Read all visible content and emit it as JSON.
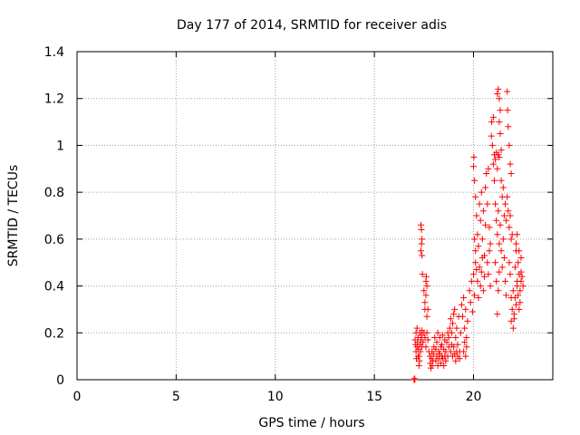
{
  "chart_data": {
    "type": "scatter",
    "title": "Day 177 of 2014, SRMTID for receiver adis",
    "xlabel": "GPS time / hours",
    "ylabel": "SRMTID / TECUs",
    "xlim": [
      0,
      24
    ],
    "ylim": [
      0,
      1.4
    ],
    "xticks": [
      0,
      5,
      10,
      15,
      20
    ],
    "xtick_labels": [
      "0",
      "5",
      "10",
      "15",
      "20"
    ],
    "yticks": [
      0,
      0.2,
      0.4,
      0.6,
      0.8,
      1.0,
      1.2,
      1.4
    ],
    "ytick_labels": [
      "0",
      "0.2",
      "0.4",
      "0.6",
      "0.8",
      "1",
      "1.2",
      "1.4"
    ],
    "grid": true,
    "marker": "plus",
    "series_color": "#ff0000",
    "series": [
      {
        "name": "SRMTID",
        "points": [
          [
            17.0,
            0.0
          ],
          [
            17.02,
            0.005
          ],
          [
            17.04,
            0.0
          ],
          [
            17.05,
            0.17
          ],
          [
            17.08,
            0.15
          ],
          [
            17.1,
            0.12
          ],
          [
            17.12,
            0.09
          ],
          [
            17.15,
            0.14
          ],
          [
            17.18,
            0.16
          ],
          [
            17.2,
            0.18
          ],
          [
            17.22,
            0.13
          ],
          [
            17.25,
            0.1
          ],
          [
            17.28,
            0.08
          ],
          [
            17.3,
            0.15
          ],
          [
            17.32,
            0.12
          ],
          [
            17.35,
            0.17
          ],
          [
            17.38,
            0.19
          ],
          [
            17.4,
            0.14
          ],
          [
            17.1,
            0.2
          ],
          [
            17.15,
            0.22
          ],
          [
            17.2,
            0.1
          ],
          [
            17.25,
            0.06
          ],
          [
            17.3,
            0.2
          ],
          [
            17.4,
            0.21
          ],
          [
            17.45,
            0.16
          ],
          [
            17.35,
            0.66
          ],
          [
            17.37,
            0.64
          ],
          [
            17.4,
            0.6
          ],
          [
            17.38,
            0.58
          ],
          [
            17.35,
            0.55
          ],
          [
            17.4,
            0.53
          ],
          [
            17.42,
            0.45
          ],
          [
            17.5,
            0.38
          ],
          [
            17.55,
            0.3
          ],
          [
            17.6,
            0.36
          ],
          [
            17.65,
            0.4
          ],
          [
            17.55,
            0.33
          ],
          [
            17.6,
            0.42
          ],
          [
            17.62,
            0.44
          ],
          [
            17.7,
            0.3
          ],
          [
            17.65,
            0.27
          ],
          [
            17.5,
            0.2
          ],
          [
            17.55,
            0.18
          ],
          [
            17.6,
            0.14
          ],
          [
            17.65,
            0.2
          ],
          [
            17.7,
            0.17
          ],
          [
            17.75,
            0.12
          ],
          [
            17.8,
            0.1
          ],
          [
            17.82,
            0.07
          ],
          [
            17.85,
            0.05
          ],
          [
            17.88,
            0.09
          ],
          [
            17.9,
            0.12
          ],
          [
            17.92,
            0.06
          ],
          [
            17.95,
            0.08
          ],
          [
            17.98,
            0.11
          ],
          [
            18.0,
            0.14
          ],
          [
            18.05,
            0.18
          ],
          [
            18.1,
            0.13
          ],
          [
            18.15,
            0.16
          ],
          [
            18.2,
            0.2
          ],
          [
            18.25,
            0.12
          ],
          [
            18.3,
            0.18
          ],
          [
            18.35,
            0.14
          ],
          [
            18.1,
            0.08
          ],
          [
            18.15,
            0.1
          ],
          [
            18.2,
            0.06
          ],
          [
            18.25,
            0.09
          ],
          [
            18.3,
            0.11
          ],
          [
            18.35,
            0.07
          ],
          [
            18.4,
            0.1
          ],
          [
            18.4,
            0.15
          ],
          [
            18.45,
            0.19
          ],
          [
            18.5,
            0.13
          ],
          [
            18.55,
            0.17
          ],
          [
            18.6,
            0.12
          ],
          [
            18.65,
            0.16
          ],
          [
            18.7,
            0.1
          ],
          [
            18.75,
            0.14
          ],
          [
            18.45,
            0.09
          ],
          [
            18.5,
            0.06
          ],
          [
            18.55,
            0.1
          ],
          [
            18.6,
            0.08
          ],
          [
            18.7,
            0.2
          ],
          [
            18.75,
            0.18
          ],
          [
            18.8,
            0.22
          ],
          [
            18.85,
            0.26
          ],
          [
            18.9,
            0.2
          ],
          [
            18.95,
            0.24
          ],
          [
            19.0,
            0.28
          ],
          [
            18.85,
            0.12
          ],
          [
            18.9,
            0.15
          ],
          [
            18.95,
            0.1
          ],
          [
            19.0,
            0.14
          ],
          [
            19.05,
            0.3
          ],
          [
            19.1,
            0.18
          ],
          [
            19.15,
            0.22
          ],
          [
            19.2,
            0.15
          ],
          [
            19.25,
            0.27
          ],
          [
            19.3,
            0.12
          ],
          [
            19.35,
            0.2
          ],
          [
            19.05,
            0.11
          ],
          [
            19.1,
            0.08
          ],
          [
            19.15,
            0.12
          ],
          [
            19.2,
            0.1
          ],
          [
            19.3,
            0.09
          ],
          [
            19.4,
            0.32
          ],
          [
            19.45,
            0.27
          ],
          [
            19.5,
            0.35
          ],
          [
            19.55,
            0.22
          ],
          [
            19.6,
            0.3
          ],
          [
            19.65,
            0.18
          ],
          [
            19.7,
            0.25
          ],
          [
            19.5,
            0.12
          ],
          [
            19.55,
            0.16
          ],
          [
            19.6,
            0.1
          ],
          [
            19.65,
            0.14
          ],
          [
            19.8,
            0.38
          ],
          [
            19.85,
            0.33
          ],
          [
            19.9,
            0.42
          ],
          [
            19.95,
            0.29
          ],
          [
            20.0,
            0.45
          ],
          [
            20.05,
            0.36
          ],
          [
            20.1,
            0.5
          ],
          [
            20.0,
            0.91
          ],
          [
            20.02,
            0.95
          ],
          [
            20.05,
            0.85
          ],
          [
            20.1,
            0.78
          ],
          [
            20.15,
            0.7
          ],
          [
            20.2,
            0.62
          ],
          [
            20.25,
            0.57
          ],
          [
            20.05,
            0.6
          ],
          [
            20.1,
            0.55
          ],
          [
            20.15,
            0.47
          ],
          [
            20.2,
            0.42
          ],
          [
            20.25,
            0.35
          ],
          [
            20.3,
            0.48
          ],
          [
            20.3,
            0.75
          ],
          [
            20.35,
            0.68
          ],
          [
            20.4,
            0.8
          ],
          [
            20.45,
            0.6
          ],
          [
            20.5,
            0.72
          ],
          [
            20.55,
            0.53
          ],
          [
            20.6,
            0.66
          ],
          [
            20.35,
            0.4
          ],
          [
            20.4,
            0.46
          ],
          [
            20.45,
            0.52
          ],
          [
            20.5,
            0.38
          ],
          [
            20.55,
            0.44
          ],
          [
            20.6,
            0.82
          ],
          [
            20.65,
            0.88
          ],
          [
            20.7,
            0.75
          ],
          [
            20.75,
            0.9
          ],
          [
            20.8,
            0.65
          ],
          [
            20.85,
            0.58
          ],
          [
            20.7,
            0.5
          ],
          [
            20.75,
            0.45
          ],
          [
            20.8,
            0.55
          ],
          [
            20.85,
            0.4
          ],
          [
            20.9,
            1.04
          ],
          [
            20.92,
            1.1
          ],
          [
            20.95,
            1.0
          ],
          [
            21.0,
            1.12
          ],
          [
            21.05,
            0.96
          ],
          [
            21.0,
            0.92
          ],
          [
            21.05,
            0.85
          ],
          [
            21.1,
            0.94
          ],
          [
            21.15,
            0.97
          ],
          [
            21.2,
            0.9
          ],
          [
            21.25,
            0.96
          ],
          [
            21.3,
            0.95
          ],
          [
            21.1,
            0.75
          ],
          [
            21.15,
            0.68
          ],
          [
            21.2,
            0.62
          ],
          [
            21.25,
            0.72
          ],
          [
            21.3,
            0.58
          ],
          [
            21.35,
            0.66
          ],
          [
            21.1,
            0.5
          ],
          [
            21.15,
            0.42
          ],
          [
            21.2,
            0.28
          ],
          [
            21.25,
            0.38
          ],
          [
            21.3,
            0.46
          ],
          [
            21.2,
            1.22
          ],
          [
            21.25,
            1.24
          ],
          [
            21.3,
            1.2
          ],
          [
            21.35,
            1.15
          ],
          [
            21.3,
            1.1
          ],
          [
            21.35,
            1.05
          ],
          [
            21.4,
            0.98
          ],
          [
            21.4,
            0.85
          ],
          [
            21.45,
            0.78
          ],
          [
            21.5,
            0.82
          ],
          [
            21.55,
            0.7
          ],
          [
            21.6,
            0.75
          ],
          [
            21.65,
            0.68
          ],
          [
            21.4,
            0.55
          ],
          [
            21.45,
            0.48
          ],
          [
            21.5,
            0.6
          ],
          [
            21.55,
            0.52
          ],
          [
            21.6,
            0.42
          ],
          [
            21.65,
            0.36
          ],
          [
            21.7,
            1.23
          ],
          [
            21.72,
            1.15
          ],
          [
            21.75,
            1.08
          ],
          [
            21.8,
            1.0
          ],
          [
            21.85,
            0.92
          ],
          [
            21.9,
            0.88
          ],
          [
            21.7,
            0.78
          ],
          [
            21.75,
            0.72
          ],
          [
            21.8,
            0.65
          ],
          [
            21.85,
            0.7
          ],
          [
            21.9,
            0.6
          ],
          [
            21.95,
            0.62
          ],
          [
            21.8,
            0.5
          ],
          [
            21.85,
            0.45
          ],
          [
            21.9,
            0.35
          ],
          [
            21.95,
            0.3
          ],
          [
            22.0,
            0.38
          ],
          [
            22.05,
            0.28
          ],
          [
            21.9,
            0.25
          ],
          [
            22.0,
            0.22
          ],
          [
            22.05,
            0.26
          ],
          [
            22.1,
            0.48
          ],
          [
            22.15,
            0.55
          ],
          [
            22.2,
            0.42
          ],
          [
            22.25,
            0.5
          ],
          [
            22.3,
            0.45
          ],
          [
            22.35,
            0.38
          ],
          [
            22.4,
            0.46
          ],
          [
            22.1,
            0.35
          ],
          [
            22.15,
            0.32
          ],
          [
            22.2,
            0.4
          ],
          [
            22.25,
            0.36
          ],
          [
            22.3,
            0.3
          ],
          [
            22.35,
            0.33
          ],
          [
            22.4,
            0.42
          ],
          [
            22.15,
            0.58
          ],
          [
            22.2,
            0.62
          ],
          [
            22.3,
            0.55
          ],
          [
            22.4,
            0.52
          ],
          [
            22.45,
            0.44
          ],
          [
            22.5,
            0.4
          ]
        ]
      }
    ]
  }
}
